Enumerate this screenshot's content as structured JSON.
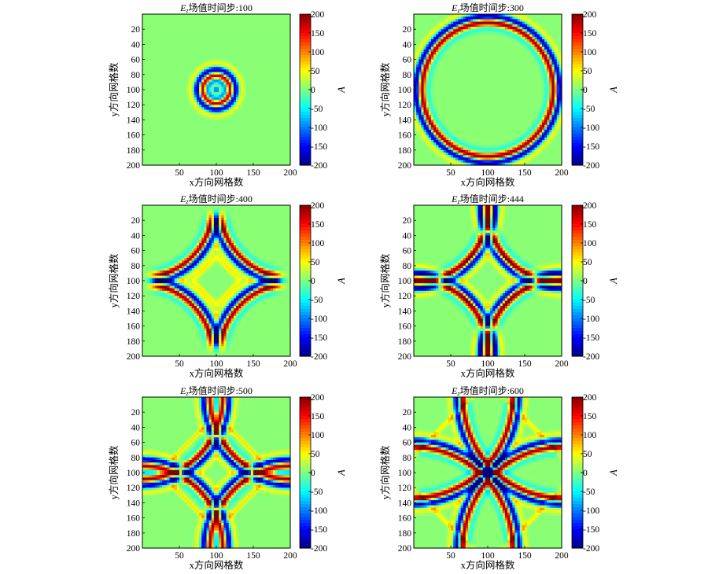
{
  "chart_data": [
    {
      "type": "heatmap",
      "title": "Ez场值时间步:100",
      "title_prefix": "E",
      "title_sub": "z",
      "title_rest": "场值时间步:100",
      "timestep": 100,
      "xlabel": "x方向网格数",
      "ylabel": "y方向网格数",
      "colorbar_label": "A",
      "xlim": [
        0,
        200
      ],
      "ylim": [
        200,
        0
      ],
      "clim": [
        -200,
        200
      ],
      "x_ticks": [
        50,
        100,
        150,
        200
      ],
      "y_ticks": [
        20,
        40,
        60,
        80,
        100,
        120,
        140,
        160,
        180,
        200
      ],
      "colorbar_ticks": [
        200,
        150,
        100,
        50,
        0,
        -50,
        -100,
        -150,
        -200
      ],
      "wave_source": [
        100,
        100
      ]
    },
    {
      "type": "heatmap",
      "title": "Ez场值时间步:300",
      "title_prefix": "E",
      "title_sub": "z",
      "title_rest": "场值时间步:300",
      "timestep": 300,
      "xlabel": "x方向网格数",
      "ylabel": "y方向网格数",
      "colorbar_label": "A",
      "xlim": [
        0,
        200
      ],
      "ylim": [
        200,
        0
      ],
      "clim": [
        -200,
        200
      ],
      "x_ticks": [
        50,
        100,
        150,
        200
      ],
      "y_ticks": [
        20,
        40,
        60,
        80,
        100,
        120,
        140,
        160,
        180,
        200
      ],
      "colorbar_ticks": [
        200,
        150,
        100,
        50,
        0,
        -50,
        -100,
        -150,
        -200
      ],
      "wave_source": [
        100,
        100
      ]
    },
    {
      "type": "heatmap",
      "title": "Ez场值时间步:400",
      "title_prefix": "E",
      "title_sub": "z",
      "title_rest": "场值时间步:400",
      "timestep": 400,
      "xlabel": "x方向网格数",
      "ylabel": "y方向网格数",
      "colorbar_label": "A",
      "xlim": [
        0,
        200
      ],
      "ylim": [
        200,
        0
      ],
      "clim": [
        -200,
        200
      ],
      "x_ticks": [
        50,
        100,
        150,
        200
      ],
      "y_ticks": [
        20,
        40,
        60,
        80,
        100,
        120,
        140,
        160,
        180,
        200
      ],
      "colorbar_ticks": [
        200,
        150,
        100,
        50,
        0,
        -50,
        -100,
        -150,
        -200
      ],
      "wave_source": [
        100,
        100
      ]
    },
    {
      "type": "heatmap",
      "title": "Ez场值时间步:444",
      "title_prefix": "E",
      "title_sub": "z",
      "title_rest": "场值时间步:444",
      "timestep": 444,
      "xlabel": "x方向网格数",
      "ylabel": "y方向网格数",
      "colorbar_label": "A",
      "xlim": [
        0,
        200
      ],
      "ylim": [
        200,
        0
      ],
      "clim": [
        -200,
        200
      ],
      "x_ticks": [
        50,
        100,
        150,
        200
      ],
      "y_ticks": [
        20,
        40,
        60,
        80,
        100,
        120,
        140,
        160,
        180,
        200
      ],
      "colorbar_ticks": [
        200,
        150,
        100,
        50,
        0,
        -50,
        -100,
        -150,
        -200
      ],
      "wave_source": [
        100,
        100
      ]
    },
    {
      "type": "heatmap",
      "title": "Ez场值时间步:500",
      "title_prefix": "E",
      "title_sub": "z",
      "title_rest": "场值时间步:500",
      "timestep": 500,
      "xlabel": "x方向网格数",
      "ylabel": "y方向网格数",
      "colorbar_label": "A",
      "xlim": [
        0,
        200
      ],
      "ylim": [
        200,
        0
      ],
      "clim": [
        -200,
        200
      ],
      "x_ticks": [
        50,
        100,
        150,
        200
      ],
      "y_ticks": [
        20,
        40,
        60,
        80,
        100,
        120,
        140,
        160,
        180,
        200
      ],
      "colorbar_ticks": [
        200,
        150,
        100,
        50,
        0,
        -50,
        -100,
        -150,
        -200
      ],
      "wave_source": [
        100,
        100
      ]
    },
    {
      "type": "heatmap",
      "title": "Ez场值时间步:600",
      "title_prefix": "E",
      "title_sub": "z",
      "title_rest": "场值时间步:600",
      "timestep": 600,
      "xlabel": "x方向网格数",
      "ylabel": "y方向网格数",
      "colorbar_label": "A",
      "xlim": [
        0,
        200
      ],
      "ylim": [
        200,
        0
      ],
      "clim": [
        -200,
        200
      ],
      "x_ticks": [
        50,
        100,
        150,
        200
      ],
      "y_ticks": [
        20,
        40,
        60,
        80,
        100,
        120,
        140,
        160,
        180,
        200
      ],
      "colorbar_ticks": [
        200,
        150,
        100,
        50,
        0,
        -50,
        -100,
        -150,
        -200
      ],
      "wave_source": [
        100,
        100
      ]
    }
  ],
  "colormap": "jet",
  "colors": {
    "background_field": "#a4cf4f",
    "dark_red": "#7f0000",
    "dark_blue": "#00008f"
  }
}
